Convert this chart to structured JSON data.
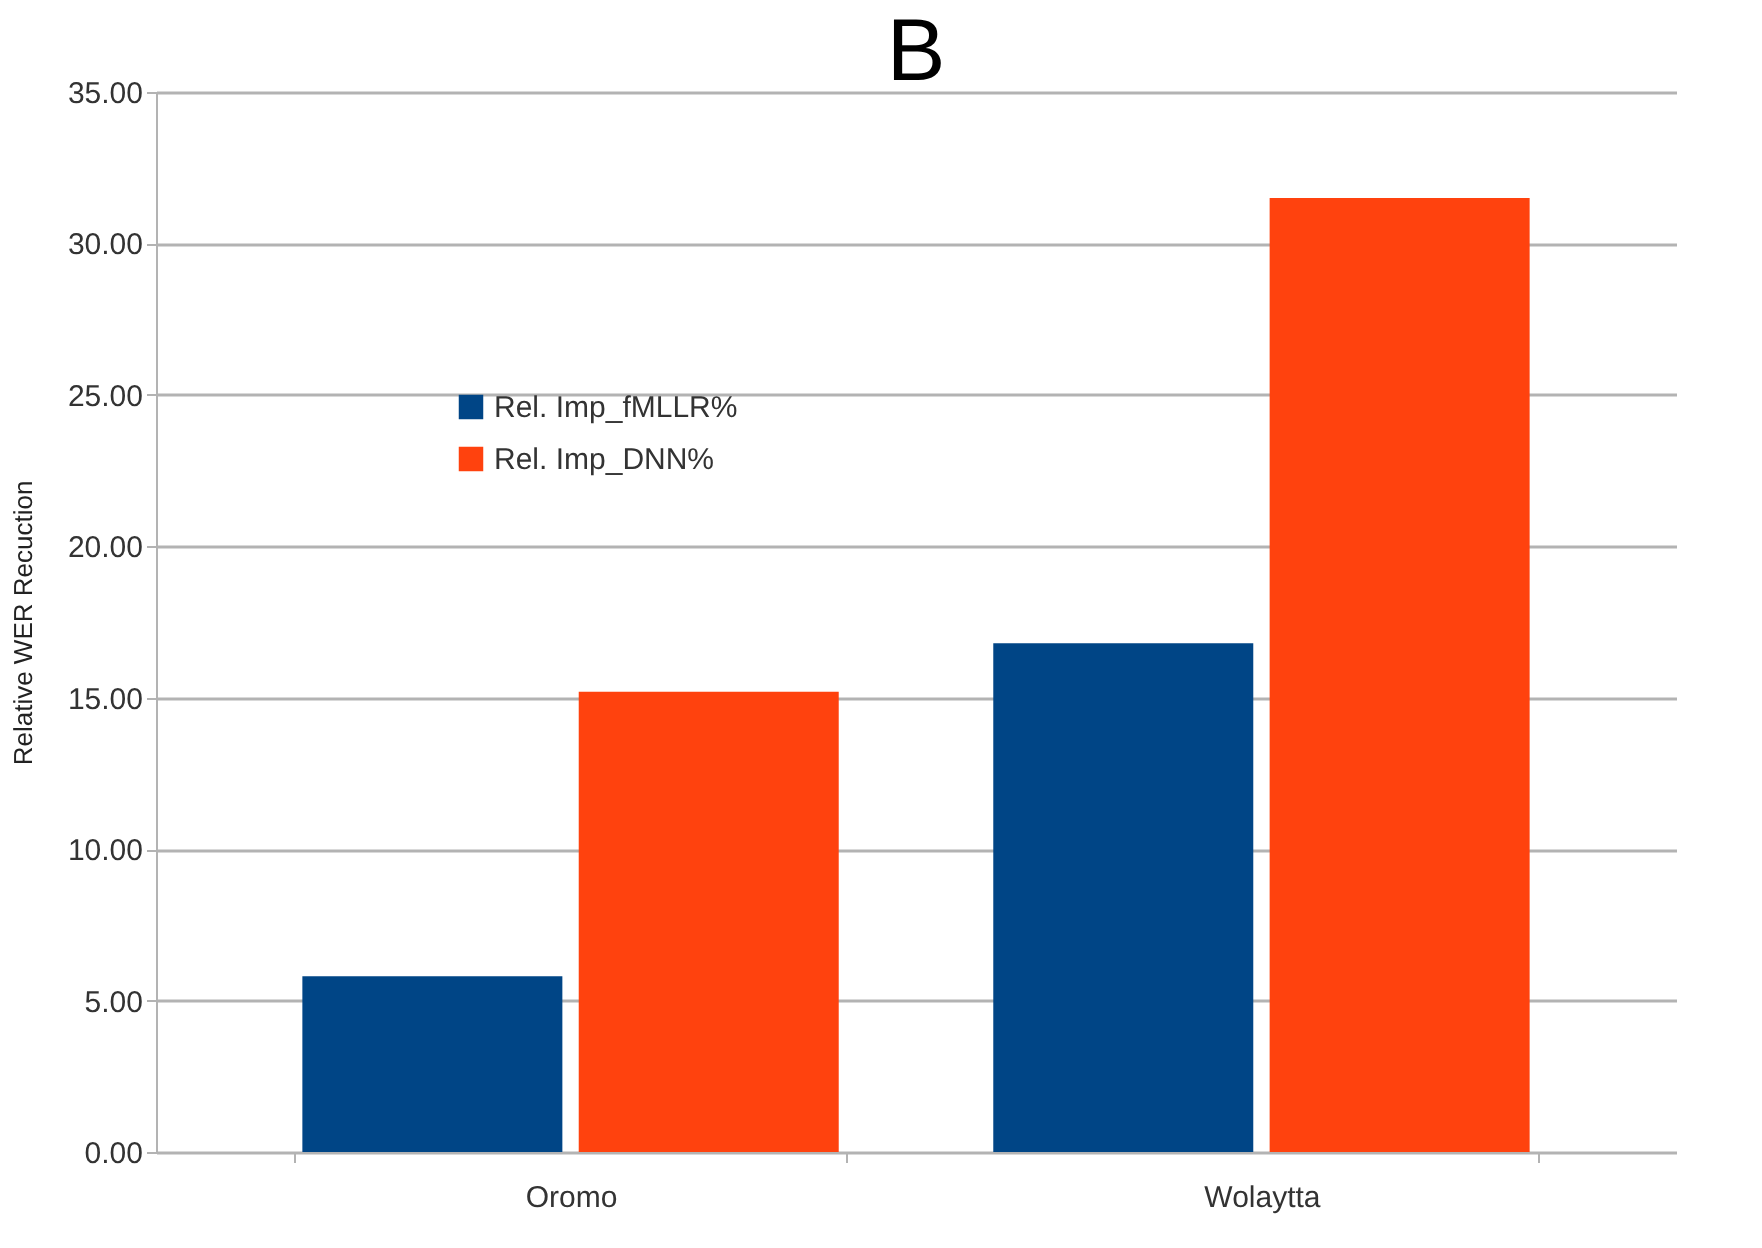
{
  "chart_data": {
    "type": "bar",
    "title": "B",
    "ylabel": "Relative WER Recuction",
    "categories": [
      "Oromo",
      "Wolaytta"
    ],
    "series": [
      {
        "name": "Rel. Imp_fMLLR%",
        "color": "#004586",
        "values": [
          5.8,
          16.8
        ]
      },
      {
        "name": "Rel. Imp_DNN%",
        "color": "#ff420e",
        "values": [
          15.2,
          31.5
        ]
      }
    ],
    "ylim": [
      0,
      35
    ],
    "yticks": [
      {
        "value": 0,
        "label": "0.00"
      },
      {
        "value": 5,
        "label": "5.00"
      },
      {
        "value": 10,
        "label": "10.00"
      },
      {
        "value": 15,
        "label": "15.00"
      },
      {
        "value": 20,
        "label": "20.00"
      },
      {
        "value": 25,
        "label": "25.00"
      },
      {
        "value": 30,
        "label": "30.00"
      },
      {
        "value": 35,
        "label": "35.00"
      }
    ],
    "grid": "y",
    "legend": "top left"
  }
}
